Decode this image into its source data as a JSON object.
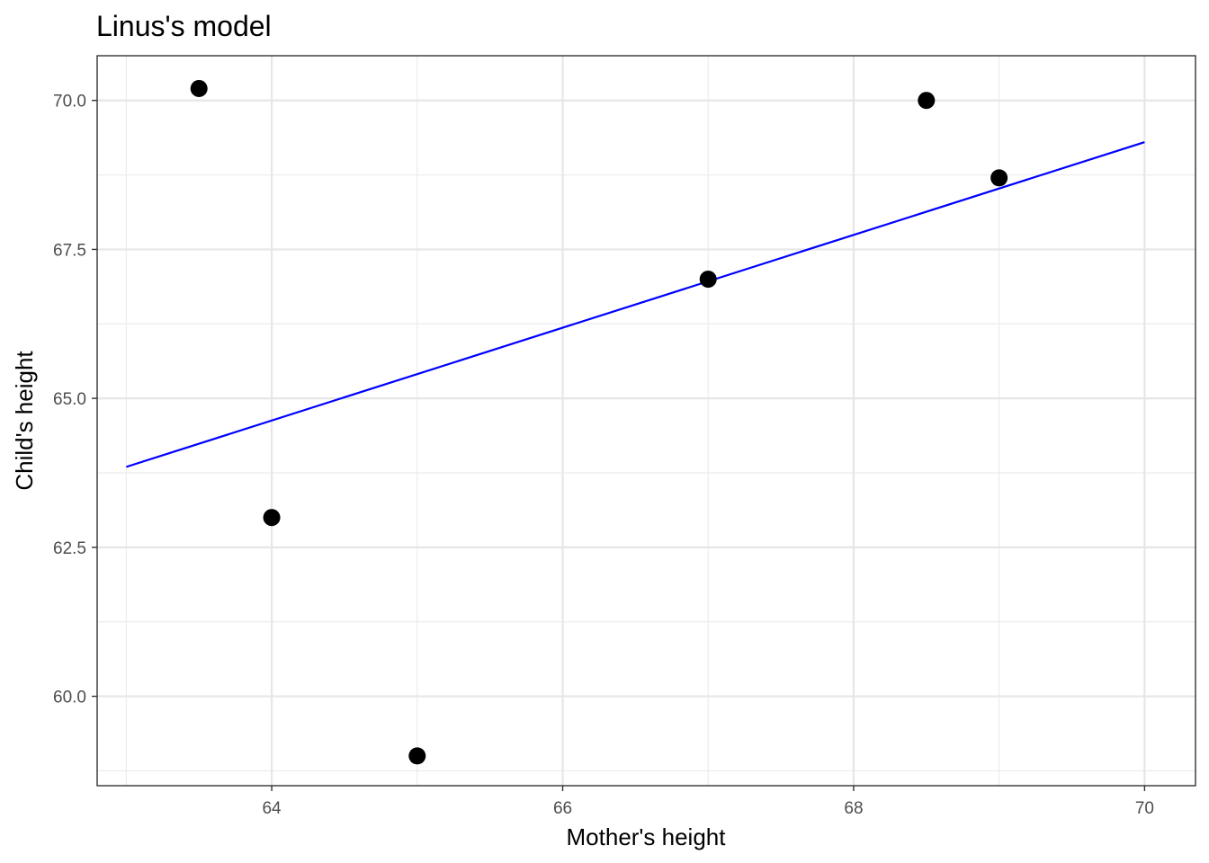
{
  "chart_data": {
    "type": "scatter",
    "title": "Linus's model",
    "xlabel": "Mother's height",
    "ylabel": "Child's height",
    "xlim": [
      62.8,
      70.35
    ],
    "ylim": [
      58.5,
      70.75
    ],
    "x_ticks": [
      64,
      66,
      68,
      70
    ],
    "x_tick_labels": [
      "64",
      "66",
      "68",
      "70"
    ],
    "y_ticks": [
      60.0,
      62.5,
      65.0,
      67.5,
      70.0
    ],
    "y_tick_labels": [
      "60.0",
      "62.5",
      "65.0",
      "67.5",
      "70.0"
    ],
    "x_minor_ticks": [
      63,
      65,
      67,
      69
    ],
    "y_minor_ticks": [
      58.75,
      61.25,
      63.75,
      66.25,
      68.75
    ],
    "grid": true,
    "points": [
      {
        "x": 63.5,
        "y": 70.2
      },
      {
        "x": 64.0,
        "y": 63.0
      },
      {
        "x": 65.0,
        "y": 59.0
      },
      {
        "x": 67.0,
        "y": 67.0
      },
      {
        "x": 68.5,
        "y": 70.0
      },
      {
        "x": 69.0,
        "y": 68.7
      }
    ],
    "fit_line": {
      "x": [
        63.0,
        70.0
      ],
      "y": [
        63.85,
        69.3
      ],
      "color": "#0000ff"
    },
    "point_color": "#000000"
  }
}
